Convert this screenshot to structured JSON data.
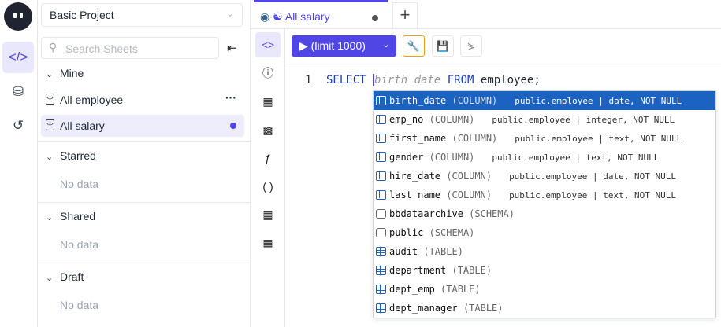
{
  "colors": {
    "accent": "#4f46e5",
    "selection": "#1b62c1",
    "wrench": "#f59e0b"
  },
  "rail": {
    "items": [
      {
        "icon": "sheet-icon",
        "active": true
      },
      {
        "icon": "database-icon"
      },
      {
        "icon": "history-icon"
      }
    ]
  },
  "sidebar": {
    "project": "Basic Project",
    "search_placeholder": "Search Sheets",
    "sections": {
      "mine": {
        "label": "Mine",
        "items": [
          {
            "label": "All employee"
          },
          {
            "label": "All salary"
          }
        ]
      },
      "starred": {
        "label": "Starred",
        "empty": "No data"
      },
      "shared": {
        "label": "Shared",
        "empty": "No data"
      },
      "draft": {
        "label": "Draft",
        "empty": "No data"
      }
    }
  },
  "tabs": [
    {
      "label": "All salary",
      "unsaved": true
    }
  ],
  "toolbar": {
    "run_label": "(limit 1000)"
  },
  "editor": {
    "line": "1",
    "keyword1": "SELECT",
    "placeholder": "birth_date",
    "keyword2": "FROM",
    "rest": " employee;"
  },
  "autocomplete": [
    {
      "name": "birth_date",
      "kind": "(COLUMN)",
      "detail": "public.employee | date, NOT NULL",
      "type": "col",
      "selected": true
    },
    {
      "name": "emp_no",
      "kind": "(COLUMN)",
      "detail": "public.employee | integer, NOT NULL",
      "type": "col"
    },
    {
      "name": "first_name",
      "kind": "(COLUMN)",
      "detail": "public.employee | text, NOT NULL",
      "type": "col"
    },
    {
      "name": "gender",
      "kind": "(COLUMN)",
      "detail": "public.employee | text, NOT NULL",
      "type": "col"
    },
    {
      "name": "hire_date",
      "kind": "(COLUMN)",
      "detail": "public.employee | date, NOT NULL",
      "type": "col"
    },
    {
      "name": "last_name",
      "kind": "(COLUMN)",
      "detail": "public.employee | text, NOT NULL",
      "type": "col"
    },
    {
      "name": "bbdataarchive",
      "kind": "(SCHEMA)",
      "detail": "",
      "type": "sch"
    },
    {
      "name": "public",
      "kind": "(SCHEMA)",
      "detail": "",
      "type": "sch"
    },
    {
      "name": "audit",
      "kind": "(TABLE)",
      "detail": "",
      "type": "tbl"
    },
    {
      "name": "department",
      "kind": "(TABLE)",
      "detail": "",
      "type": "tbl"
    },
    {
      "name": "dept_emp",
      "kind": "(TABLE)",
      "detail": "",
      "type": "tbl"
    },
    {
      "name": "dept_manager",
      "kind": "(TABLE)",
      "detail": "",
      "type": "tbl"
    }
  ]
}
